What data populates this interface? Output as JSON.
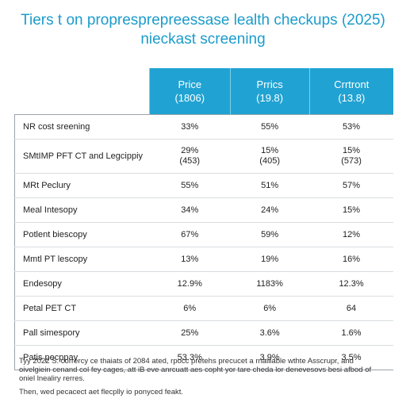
{
  "title": {
    "line1": "Tiers t on propresprepreessase lealth checkups (2025)",
    "line2": "nieckast screening"
  },
  "columns": [
    {
      "label": "Price",
      "sub": "(1806)"
    },
    {
      "label": "Prrics",
      "sub": "(19.8)"
    },
    {
      "label": "Crrtront",
      "sub": "(13.8)"
    }
  ],
  "rows": [
    {
      "name": "NR cost sreening",
      "values": [
        "33%",
        "55%",
        "53%"
      ]
    },
    {
      "name": "SMtIMP PFT CT and Legcippiy",
      "values": [
        "29%\n(453)",
        "15%\n(405)",
        "15%\n(573)"
      ]
    },
    {
      "name": "MRt Peclury",
      "values": [
        "55%",
        "51%",
        "57%"
      ]
    },
    {
      "name": "Meal Intesopy",
      "values": [
        "34%",
        "24%",
        "15%"
      ]
    },
    {
      "name": "Potlent biescopy",
      "values": [
        "67%",
        "59%",
        "12%"
      ]
    },
    {
      "name": "Mmtl PT lescopy",
      "values": [
        "13%",
        "19%",
        "16%"
      ]
    },
    {
      "name": "Endesopy",
      "values": [
        "12.9%",
        "1183%",
        "12.3%"
      ]
    },
    {
      "name": "Petal PET CT",
      "values": [
        "6%",
        "6%",
        "64"
      ]
    },
    {
      "name": "Pall simespory",
      "values": [
        "25%",
        "3.6%",
        "1.6%"
      ]
    },
    {
      "name": "Patis pecppay",
      "values": [
        "53.3%",
        "3.9%",
        "3.5%"
      ]
    }
  ],
  "footnote": {
    "p1": "Tyy 2022 S. corrercy ce thaiats of 2084 ated, rpocc pretehs precucet a rnaiilable wthte Asscrupr, and oivelgiein cenand col fey cages, att iB eve anrcuatt aes copht yor tare cheda lor denevesovs besi afbod of oniel lnealiry rerres.",
    "p2": "Then, wed pecacect aet flecplly io ponyced feakt."
  }
}
